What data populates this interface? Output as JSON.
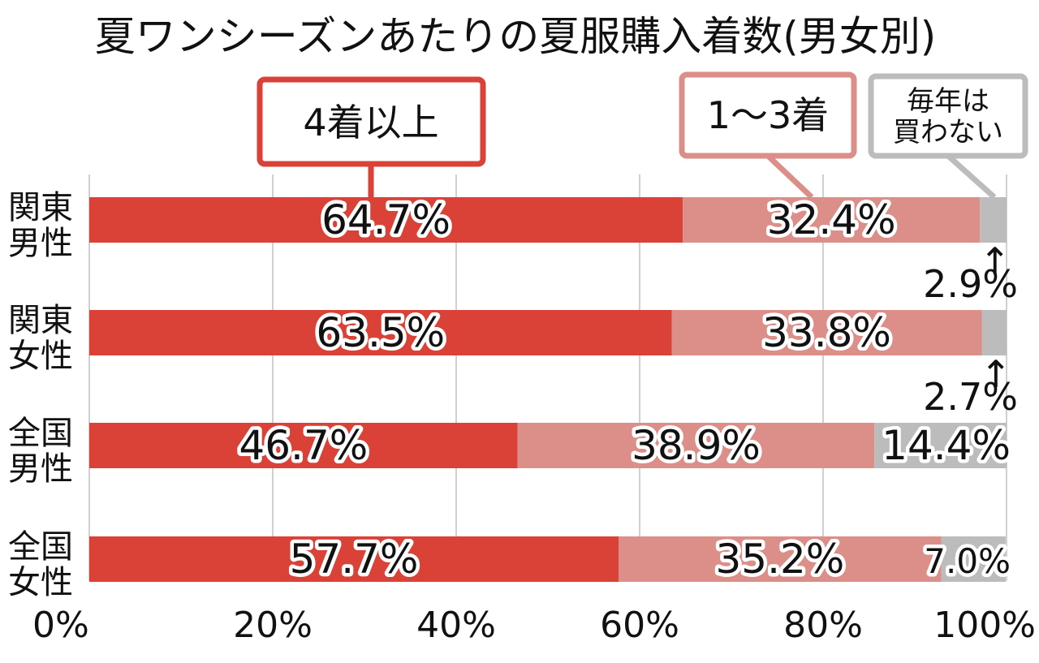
{
  "chart_data": {
    "type": "bar",
    "orientation": "horizontal",
    "stacked": true,
    "title": "夏ワンシーズンあたりの夏服購入着数(男女別)",
    "categories": [
      [
        "関東",
        "男性"
      ],
      [
        "関東",
        "女性"
      ],
      [
        "全国",
        "男性"
      ],
      [
        "全国",
        "女性"
      ]
    ],
    "series": [
      {
        "name": "4着以上",
        "color": "#db4237",
        "values": [
          64.7,
          63.5,
          46.7,
          57.7
        ]
      },
      {
        "name": "1〜3着",
        "color": "#dc8e89",
        "values": [
          32.4,
          33.8,
          38.9,
          35.2
        ]
      },
      {
        "name_lines": [
          "毎年は",
          "買わない"
        ],
        "color": "#bcbcbc",
        "values": [
          2.9,
          2.7,
          14.4,
          7.0
        ]
      }
    ],
    "data_labels": [
      [
        "64.7%",
        "32.4%",
        "2.9%"
      ],
      [
        "63.5%",
        "33.8%",
        "2.7%"
      ],
      [
        "46.7%",
        "38.9%",
        "14.4%"
      ],
      [
        "57.7%",
        "35.2%",
        "7.0%"
      ]
    ],
    "xlim": [
      0,
      100
    ],
    "xticks": [
      "0%",
      "20%",
      "40%",
      "60%",
      "80%",
      "100%"
    ],
    "grid": true,
    "legend": "callouts above bars",
    "arrow_glyph": "↑"
  }
}
